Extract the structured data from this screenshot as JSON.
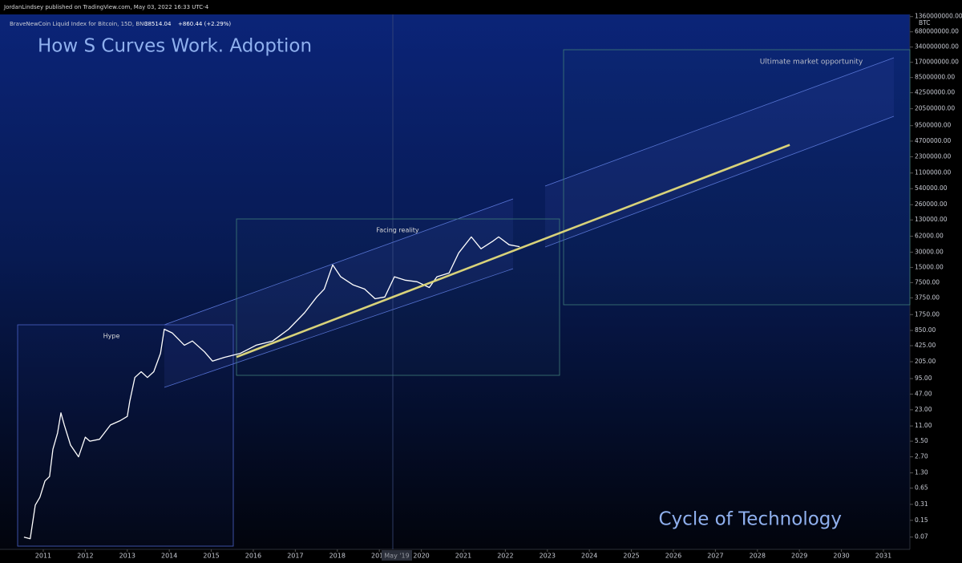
{
  "chart_data": {
    "type": "line",
    "title": "How S Curves Work. Adoption",
    "publisher": "JordanLindsey published on TradingView.com, May 03, 2022 16:33 UTC-4",
    "symbol": "BraveNewCoin Liquid Index for Bitcoin, 15D, BNC",
    "price": "38514.04",
    "change": "+860.44 (+2.29%)",
    "y_axis_label": "BTC",
    "crosshair_label": "May '19",
    "annotations": [
      "Cycle of Technology",
      "Hype",
      "Facing reality",
      "Ultimate market opportunity"
    ],
    "log_scale": true,
    "grid": false,
    "xlim": [
      2009.97,
      2031.63
    ],
    "xticks": [
      2011,
      2012,
      2013,
      2014,
      2015,
      2016,
      2017,
      2018,
      2019,
      2020,
      2021,
      2022,
      2023,
      2024,
      2025,
      2026,
      2027,
      2028,
      2029,
      2030,
      2031
    ],
    "ylim": [
      0.04,
      1500000000
    ],
    "yticks": [
      0.07,
      0.15,
      0.31,
      0.65,
      {
        "value": 1.3,
        "label": "1.30"
      },
      {
        "value": 2.7,
        "label": "2.70"
      },
      {
        "value": 5.5,
        "label": "5.50"
      },
      {
        "value": 11,
        "label": "11.00"
      },
      {
        "value": 23,
        "label": "23.00"
      },
      {
        "value": 47,
        "label": "47.00"
      },
      {
        "value": 95,
        "label": "95.00"
      },
      {
        "value": 205,
        "label": "205.00"
      },
      {
        "value": 425,
        "label": "425.00"
      },
      {
        "value": 850,
        "label": "850.00"
      },
      {
        "value": 1750,
        "label": "1750.00"
      },
      {
        "value": 3750,
        "label": "3750.00"
      },
      {
        "value": 7500,
        "label": "7500.00"
      },
      {
        "value": 15000,
        "label": "15000.00"
      },
      {
        "value": 30000,
        "label": "30000.00"
      },
      {
        "value": 62000,
        "label": "62000.00"
      },
      {
        "value": 130000,
        "label": "130000.00"
      },
      {
        "value": 260000,
        "label": "260000.00"
      },
      {
        "value": 540000,
        "label": "540000.00"
      },
      {
        "value": 1100000,
        "label": "1100000.00"
      },
      {
        "value": 2300000,
        "label": "2300000.00"
      },
      {
        "value": 4700000,
        "label": "4700000.00"
      },
      {
        "value": 9500000,
        "label": "9500000.00"
      },
      {
        "value": 20500000,
        "label": "20500000.00"
      },
      {
        "value": 42500000,
        "label": "42500000.00"
      },
      {
        "value": 85000000,
        "label": "85000000.00"
      },
      {
        "value": 170000000,
        "label": "170000000.00"
      },
      {
        "value": 340000000,
        "label": "340000000.00"
      },
      {
        "value": 680000000,
        "label": "680000000.00"
      },
      {
        "value": 1360000000,
        "label": "1360000000.00"
      }
    ],
    "series": [
      {
        "color": "#ffffff",
        "x": [
          2010.54,
          2010.69,
          2010.81,
          2010.92,
          2011.04,
          2011.15,
          2011.23,
          2011.34,
          2011.42,
          2011.5,
          2011.65,
          2011.84,
          2012.0,
          2012.11,
          2012.34,
          2012.6,
          2012.83,
          2013.0,
          2013.06,
          2013.18,
          2013.33,
          2013.48,
          2013.63,
          2013.79,
          2013.88,
          2014.07,
          2014.36,
          2014.55,
          2014.84,
          2015.03,
          2015.31,
          2015.69,
          2016.07,
          2016.46,
          2016.84,
          2017.22,
          2017.51,
          2017.69,
          2017.89,
          2018.08,
          2018.37,
          2018.65,
          2018.9,
          2019.13,
          2019.36,
          2019.61,
          2019.9,
          2020.19,
          2020.37,
          2020.66,
          2020.89,
          2021.19,
          2021.42,
          2021.71,
          2021.84,
          2022.09,
          2022.34
        ],
        "values": [
          0.07,
          0.065,
          0.3,
          0.43,
          0.9,
          1.1,
          3.8,
          8,
          20,
          11.5,
          4.6,
          2.7,
          6.6,
          5.5,
          6,
          11.5,
          14,
          17,
          34,
          100,
          130,
          100,
          130,
          300,
          900,
          760,
          435,
          525,
          320,
          210,
          250,
          300,
          435,
          525,
          900,
          1900,
          3900,
          5600,
          16800,
          9800,
          6800,
          5600,
          3600,
          3900,
          9800,
          8400,
          7800,
          6000,
          9800,
          11600,
          29000,
          60000,
          35000,
          50000,
          60000,
          42000,
          38514.04
        ]
      },
      {
        "color": "#d8d27a",
        "x": [
          2015.6,
          2028.77
        ],
        "values": [
          254,
          3960000
        ]
      }
    ]
  }
}
